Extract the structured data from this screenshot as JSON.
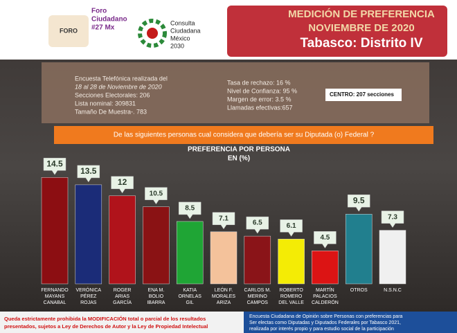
{
  "header": {
    "foro": [
      "Foro",
      "Ciudadano",
      "#27 Mx"
    ],
    "foro_logo": "FORO",
    "consulta": [
      "Consulta",
      "Ciudadana",
      "México",
      "2030"
    ],
    "title": [
      "MEDICIÓN DE PREFERENCIA",
      "NOVIEMBRE DE 2020"
    ],
    "district": "Tabasco: Distrito IV"
  },
  "info": {
    "left": [
      "Encuesta Telefónica realizada del",
      "18 al 28 de Noviembre de 2020",
      "Secciones Electorales: 206",
      "Lista nominal: 309831",
      "Tamaño De Muestra-. 783"
    ],
    "right": [
      "Tasa de rechazo: 16 %",
      "Nivel de Confianza: 95 %",
      "Margen de error: 3.5 %",
      "Llamadas efectivas:657"
    ],
    "centro": "CENTRO:  207 secciones"
  },
  "question": "De las siguientes personas cual considera que debería ser su Diputada (o) Federal ?",
  "chart_data": {
    "type": "bar",
    "title": "PREFERENCIA POR PERSONA",
    "subtitle": "EN (%)",
    "categories": [
      [
        "FERNANDO",
        "MAYANS",
        "CANABAL"
      ],
      [
        "VERÓNICA",
        "PÉREZ",
        "ROJAS"
      ],
      [
        "ROGER",
        "ARIAS",
        "GARCÍA"
      ],
      [
        "ENA M.",
        "BOLIO",
        "IBARRA"
      ],
      [
        "KATIA",
        "ORNELAS",
        "GIL"
      ],
      [
        "LEÓN F.",
        "MORALES",
        "ARIZA"
      ],
      [
        "CARLOS M.",
        "MERINO",
        "CAMPOS"
      ],
      [
        "ROBERTO",
        "ROMERO",
        "DEL VALLE"
      ],
      [
        "MARTÍN",
        "PALACIOS",
        "CALDERÓN"
      ],
      [
        "OTROS"
      ],
      [
        "N.S.N.C"
      ]
    ],
    "values": [
      14.5,
      13.5,
      12,
      10.5,
      8.5,
      7.1,
      6.5,
      6.1,
      4.5,
      9.5,
      7.3
    ],
    "colors": [
      "#8c0e12",
      "#1b2c78",
      "#b0131b",
      "#8a1214",
      "#1fa535",
      "#f4c29b",
      "#8a1418",
      "#f4ec05",
      "#dc1414",
      "#217f8e",
      "#f0f0f0"
    ]
  },
  "footer": {
    "left": [
      "Queda estrictamente prohibida la MODIFICACIÓN  total o parcial de los resultados",
      "presentados, sujetos a Ley de Derechos de Autor y la Ley de Propiedad Intelectual"
    ],
    "right": [
      "Encuesta Ciudadana de Opinión sobre Personas con preferencias para",
      "Ser electas como Diputadas y Diputados  Federales por Tabasco 2021,",
      "realizada por interés propio y para estudio social de la participación"
    ]
  }
}
